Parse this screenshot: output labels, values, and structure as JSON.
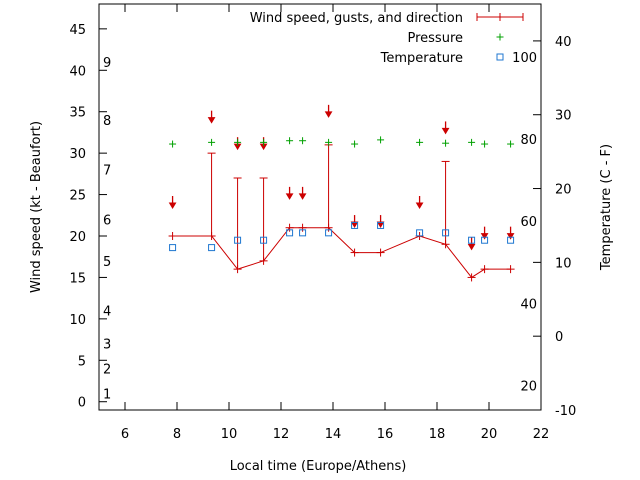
{
  "chart_data": {
    "type": "line",
    "xlabel": "Local time (Europe/Athens)",
    "ylabel_left": "Wind speed (kt - Beaufort)",
    "ylabel_right": "Temperature (C - F)",
    "xlim": [
      5,
      22
    ],
    "xticks": [
      6,
      8,
      10,
      12,
      14,
      16,
      18,
      20,
      22
    ],
    "ylim_left": [
      -1,
      48
    ],
    "yticks_left": [
      0,
      5,
      10,
      15,
      20,
      25,
      30,
      35,
      40,
      45
    ],
    "beaufort_labels": [
      {
        "label": "1",
        "value": 1
      },
      {
        "label": "2",
        "value": 4
      },
      {
        "label": "3",
        "value": 7
      },
      {
        "label": "4",
        "value": 11
      },
      {
        "label": "5",
        "value": 17
      },
      {
        "label": "6",
        "value": 22
      },
      {
        "label": "7",
        "value": 28
      },
      {
        "label": "8",
        "value": 34
      },
      {
        "label": "9",
        "value": 41
      }
    ],
    "ylim_right_c": [
      -10,
      45
    ],
    "yticks_right_c": [
      -10,
      0,
      10,
      20,
      30,
      40
    ],
    "fahrenheit_labels": [
      {
        "label": "20",
        "value_c": -6.7
      },
      {
        "label": "40",
        "value_c": 4.4
      },
      {
        "label": "60",
        "value_c": 15.6
      },
      {
        "label": "80",
        "value_c": 26.7
      },
      {
        "label": "100",
        "value_c": 37.8
      }
    ],
    "legend": [
      {
        "name": "Wind speed, gusts, and direction",
        "color": "#cc0000"
      },
      {
        "name": "Pressure",
        "color": "#00a000"
      },
      {
        "name": "Temperature",
        "color": "#1f77d0"
      }
    ],
    "wind": {
      "time": [
        7.83,
        9.33,
        10.33,
        11.33,
        12.33,
        12.83,
        13.83,
        14.83,
        15.83,
        17.33,
        18.33,
        19.33,
        19.83,
        20.83
      ],
      "speed": [
        20,
        20,
        16,
        17,
        21,
        21,
        21,
        18,
        18,
        20,
        19,
        15,
        16,
        16
      ],
      "gust": [
        null,
        30,
        27,
        27,
        null,
        null,
        31,
        null,
        null,
        null,
        29,
        null,
        null,
        null
      ],
      "arrow_y": [
        23.5,
        33.8,
        30.6,
        30.6,
        24.6,
        24.6,
        34.5,
        21.2,
        21.2,
        23.5,
        32.5,
        18.5,
        19.8,
        19.8
      ]
    },
    "pressure": {
      "time": [
        7.83,
        9.33,
        10.33,
        11.33,
        12.33,
        12.83,
        13.83,
        14.83,
        15.83,
        17.33,
        18.33,
        19.33,
        19.83,
        20.83
      ],
      "value": [
        31.1,
        31.3,
        31.3,
        31.3,
        31.5,
        31.5,
        31.3,
        31.1,
        31.6,
        31.3,
        31.2,
        31.3,
        31.1,
        31.1
      ]
    },
    "temperature": {
      "time": [
        7.83,
        9.33,
        10.33,
        11.33,
        12.33,
        12.83,
        13.83,
        14.83,
        15.83,
        17.33,
        18.33,
        19.33,
        19.83,
        20.83
      ],
      "value_c": [
        12,
        12,
        13,
        13,
        14,
        14,
        14,
        15,
        15,
        14,
        14,
        13,
        13,
        13
      ]
    }
  }
}
